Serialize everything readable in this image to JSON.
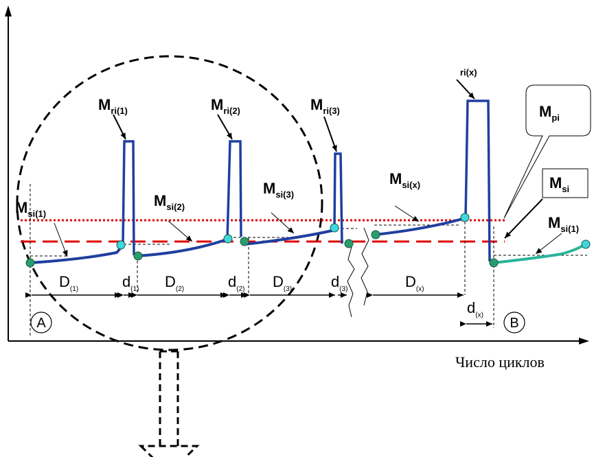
{
  "axis": {
    "x_label": "Число циклов"
  },
  "labels": {
    "mri1": {
      "main": "M",
      "sub": "ri(1)"
    },
    "mri2": {
      "main": "M",
      "sub": "ri(2)"
    },
    "mri3": {
      "main": "M",
      "sub": "ri(3)"
    },
    "mrix": {
      "main": "",
      "sub": "ri(x)"
    },
    "mpi": {
      "main": "M",
      "sub": "pi"
    },
    "msi_box": {
      "main": "M",
      "sub": "si"
    },
    "msi1": {
      "main": "M",
      "sub": "si(1)"
    },
    "msi2": {
      "main": "M",
      "sub": "si(2)"
    },
    "msi3": {
      "main": "M",
      "sub": "si(3)"
    },
    "msix": {
      "main": "M",
      "sub": "si(x)"
    },
    "msi1_right": {
      "main": "M",
      "sub": "si(1)"
    }
  },
  "dims": {
    "D1": {
      "main": "D",
      "sub": "(1)"
    },
    "d1": {
      "main": "d",
      "sub": "(1)"
    },
    "D2": {
      "main": "D",
      "sub": "(2)"
    },
    "d2": {
      "main": "d",
      "sub": "(2)"
    },
    "D3": {
      "main": "D",
      "sub": "(3)"
    },
    "d3": {
      "main": "d",
      "sub": "(3)"
    },
    "Dx": {
      "main": "D",
      "sub": "(x)"
    },
    "dx": {
      "main": "d",
      "sub": "(x)"
    }
  },
  "points": {
    "A": "A",
    "B": "B"
  },
  "colors": {
    "curve": "#1f3f9f",
    "pulse": "#1f3f9f",
    "curve_after": "#2bb39a",
    "dot_start": "#2a9d6e",
    "dot_end": "#3fd6e0",
    "red": "#e00000"
  }
}
